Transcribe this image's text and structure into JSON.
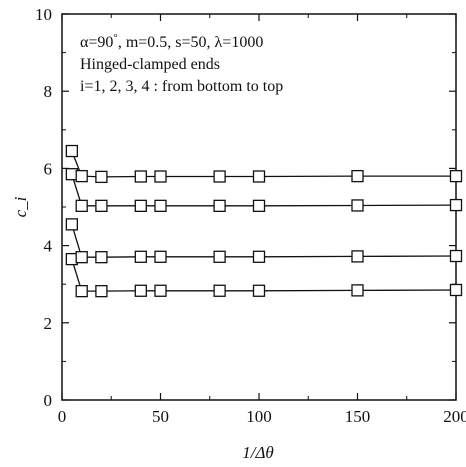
{
  "chart_data": {
    "type": "line",
    "xlabel": "1/Δθ",
    "ylabel": "c_i",
    "xlim": [
      0,
      200
    ],
    "ylim": [
      0,
      10
    ],
    "xticks": [
      0,
      50,
      100,
      150,
      200
    ],
    "yticks": [
      0,
      2,
      4,
      6,
      8,
      10
    ],
    "grid": false,
    "legend": "none",
    "x": [
      5,
      10,
      20,
      40,
      50,
      80,
      100,
      150,
      200
    ],
    "series": [
      {
        "values": [
          3.65,
          2.82,
          2.82,
          2.83,
          2.83,
          2.83,
          2.83,
          2.84,
          2.85
        ]
      },
      {
        "values": [
          4.55,
          3.7,
          3.7,
          3.71,
          3.71,
          3.71,
          3.71,
          3.72,
          3.73
        ]
      },
      {
        "values": [
          5.85,
          5.03,
          5.03,
          5.03,
          5.03,
          5.03,
          5.03,
          5.04,
          5.05
        ]
      },
      {
        "values": [
          6.45,
          5.8,
          5.78,
          5.79,
          5.79,
          5.79,
          5.79,
          5.8,
          5.8
        ]
      }
    ],
    "annotations": [
      {
        "prefix": "α=90",
        "superscript": "°",
        "suffix": ",  m=0.5,  s=50,  λ=1000"
      },
      {
        "text": "Hinged-clamped ends"
      },
      {
        "text": "i=1, 2, 3, 4 : from bottom to top"
      }
    ],
    "colors": {
      "line": "#111111",
      "marker_fill": "#ffffff",
      "marker_stroke": "#111111"
    }
  }
}
